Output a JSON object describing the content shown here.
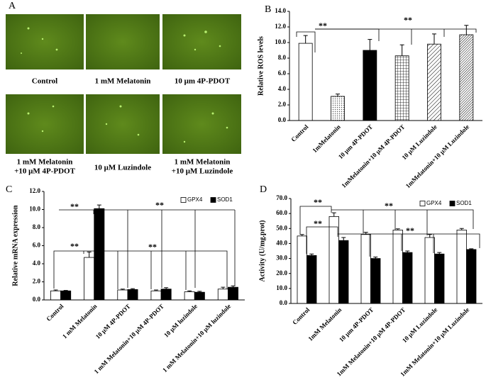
{
  "panel_a": {
    "label": "A",
    "captions": [
      "Control",
      "1 mM Melatonin",
      "10 μm 4P-PDOT",
      [
        "1 mM Melatonin",
        "+10 μM 4P-PDOT"
      ],
      "10 μM Luzindole",
      [
        "1 mM Melatonin",
        "+10 μM Luzindole"
      ]
    ]
  },
  "chart_data": [
    {
      "type": "bar",
      "label": "B",
      "ylabel": "Relative ROS levels",
      "categories": [
        "Control",
        "1mMelatonin",
        "10 μm 4P-PDOT",
        "1mMelatonin+10 μM 4P-PDOT",
        "10 μM Luzindole",
        "1mMelatonin+10 μM Luzindole"
      ],
      "values": [
        9.9,
        3.1,
        9.0,
        8.3,
        9.8,
        11.0
      ],
      "errors": [
        1.0,
        0.3,
        1.4,
        1.4,
        1.3,
        1.2
      ],
      "fills": [
        "white",
        "dots",
        "black",
        "grid",
        "hatch",
        "hatch-dense"
      ],
      "ylim": [
        0,
        14
      ],
      "yticks": [
        {
          "value": 0,
          "label": "0.0"
        },
        {
          "value": 2,
          "label": "2.0"
        },
        {
          "value": 4,
          "label": "4.0"
        },
        {
          "value": 6,
          "label": "6.0"
        },
        {
          "value": 8,
          "label": "8.0"
        },
        {
          "value": 10,
          "label": "10.0"
        },
        {
          "value": 12,
          "label": "12.0"
        },
        {
          "value": 14,
          "label": "14.0"
        }
      ],
      "annotations": [
        "**",
        "**"
      ]
    },
    {
      "type": "bar",
      "label": "C",
      "ylabel": "Relative mRNA expression",
      "categories": [
        "Control",
        "1 mM Melatonin",
        "10 μM 4P-PDOT",
        "1 mM Melatonin+10 μM 4P-PDOT",
        "10 μM luzindole",
        "1 mM Melatonin+10 μM luzindole"
      ],
      "series": [
        {
          "name": "GPX4",
          "color": "#ffffff",
          "values": [
            1.0,
            4.7,
            1.1,
            1.0,
            0.9,
            1.2
          ],
          "errors": [
            0.1,
            0.6,
            0.1,
            0.1,
            0.1,
            0.2
          ]
        },
        {
          "name": "SOD1",
          "color": "#000000",
          "values": [
            1.0,
            10.1,
            1.15,
            1.2,
            0.85,
            1.4
          ],
          "errors": [
            0.05,
            0.4,
            0.1,
            0.15,
            0.1,
            0.15
          ]
        }
      ],
      "ylim": [
        0,
        12
      ],
      "yticks": [
        {
          "value": 0,
          "label": "0.0"
        },
        {
          "value": 2,
          "label": "2.0"
        },
        {
          "value": 4,
          "label": "4.0"
        },
        {
          "value": 6,
          "label": "6.0"
        },
        {
          "value": 8,
          "label": "8.0"
        },
        {
          "value": 10,
          "label": "10.0"
        },
        {
          "value": 12,
          "label": "12.0"
        }
      ],
      "annotations": [
        "**",
        "**",
        "**",
        "**"
      ]
    },
    {
      "type": "bar",
      "label": "D",
      "ylabel": "Activity (U/mg.prot)",
      "categories": [
        "Control",
        "1mM Melatonin",
        "10 μm 4P-PDOT",
        "1mM Melatonin+10 μM 4P-PDOT",
        "10 μM Luzindole",
        "1mM Melatonin+10 μM Luzindole"
      ],
      "series": [
        {
          "name": "GPX4",
          "color": "#ffffff",
          "values": [
            45,
            58,
            46,
            49,
            44,
            49
          ],
          "errors": [
            1,
            2.5,
            1.5,
            0.8,
            2,
            1
          ]
        },
        {
          "name": "SOD1",
          "color": "#000000",
          "values": [
            32,
            42,
            30,
            34,
            33,
            36
          ],
          "errors": [
            1,
            2,
            1,
            1,
            1,
            0.5
          ]
        }
      ],
      "ylim": [
        0,
        70
      ],
      "yticks": [
        {
          "value": 0,
          "label": "0.0"
        },
        {
          "value": 10,
          "label": "10.0"
        },
        {
          "value": 20,
          "label": "20.0"
        },
        {
          "value": 30,
          "label": "30.0"
        },
        {
          "value": 40,
          "label": "40.0"
        },
        {
          "value": 50,
          "label": "50.0"
        },
        {
          "value": 60,
          "label": "60.0"
        },
        {
          "value": 70,
          "label": "70.0"
        }
      ],
      "annotations": [
        "**",
        "**",
        "**",
        "**"
      ]
    }
  ]
}
